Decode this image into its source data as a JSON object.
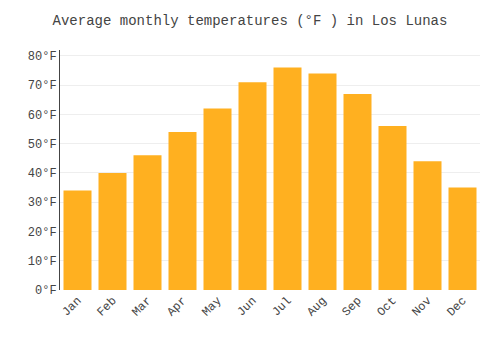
{
  "chart_data": {
    "type": "bar",
    "title": "Average monthly temperatures (°F ) in Los Lunas",
    "categories": [
      "Jan",
      "Feb",
      "Mar",
      "Apr",
      "May",
      "Jun",
      "Jul",
      "Aug",
      "Sep",
      "Oct",
      "Nov",
      "Dec"
    ],
    "values": [
      34,
      40,
      46,
      54,
      62,
      71,
      76,
      74,
      67,
      56,
      44,
      35
    ],
    "color": "#FFB020",
    "ylim": [
      0,
      82
    ],
    "yticks": [
      {
        "value": 0,
        "label": "0°F"
      },
      {
        "value": 10,
        "label": "10°F"
      },
      {
        "value": 20,
        "label": "20°F"
      },
      {
        "value": 30,
        "label": "30°F"
      },
      {
        "value": 40,
        "label": "40°F"
      },
      {
        "value": 50,
        "label": "50°F"
      },
      {
        "value": 60,
        "label": "60°F"
      },
      {
        "value": 70,
        "label": "70°F"
      },
      {
        "value": 80,
        "label": "80°F"
      }
    ],
    "grid": true
  }
}
